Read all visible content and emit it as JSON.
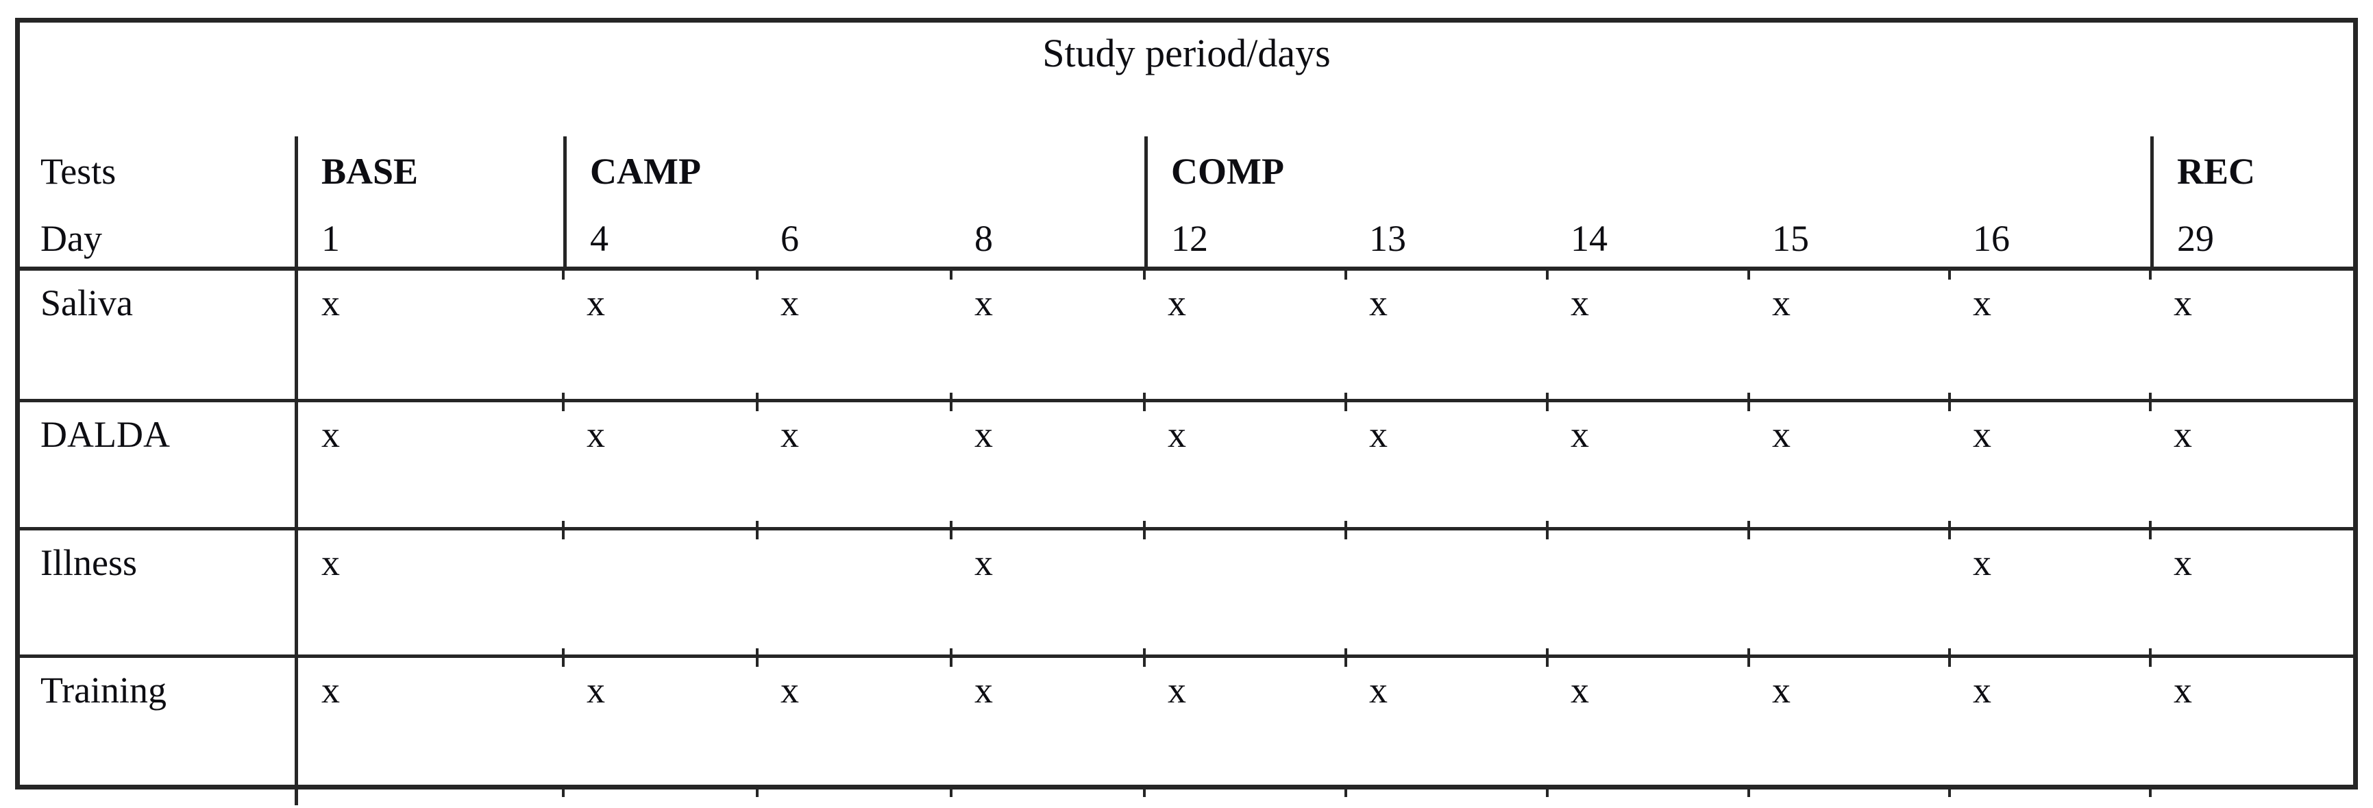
{
  "table": {
    "title": "Study period/days",
    "header": {
      "tests_label": "Tests",
      "day_label": "Day",
      "phases": [
        {
          "label": "BASE",
          "days": [
            "1"
          ]
        },
        {
          "label": "CAMP",
          "days": [
            "4",
            "6",
            "8"
          ]
        },
        {
          "label": "COMP",
          "days": [
            "12",
            "13",
            "14",
            "15",
            "16"
          ]
        },
        {
          "label": "REC",
          "days": [
            "29"
          ]
        }
      ]
    },
    "day_order": [
      "1",
      "4",
      "6",
      "8",
      "12",
      "13",
      "14",
      "15",
      "16",
      "29"
    ],
    "rows": [
      {
        "label": "Saliva",
        "marks": [
          "x",
          "x",
          "x",
          "x",
          "x",
          "x",
          "x",
          "x",
          "x",
          "x"
        ]
      },
      {
        "label": "DALDA",
        "marks": [
          "x",
          "x",
          "x",
          "x",
          "x",
          "x",
          "x",
          "x",
          "x",
          "x"
        ]
      },
      {
        "label": "Illness",
        "marks": [
          "x",
          "",
          "",
          "x",
          "",
          "",
          "",
          "",
          "x",
          "x"
        ]
      },
      {
        "label": "Training",
        "marks": [
          "x",
          "x",
          "x",
          "x",
          "x",
          "x",
          "x",
          "x",
          "x",
          "x"
        ]
      }
    ],
    "colors": {
      "line": "#262626",
      "text": "#0d0d12",
      "background": "#ffffff"
    }
  }
}
